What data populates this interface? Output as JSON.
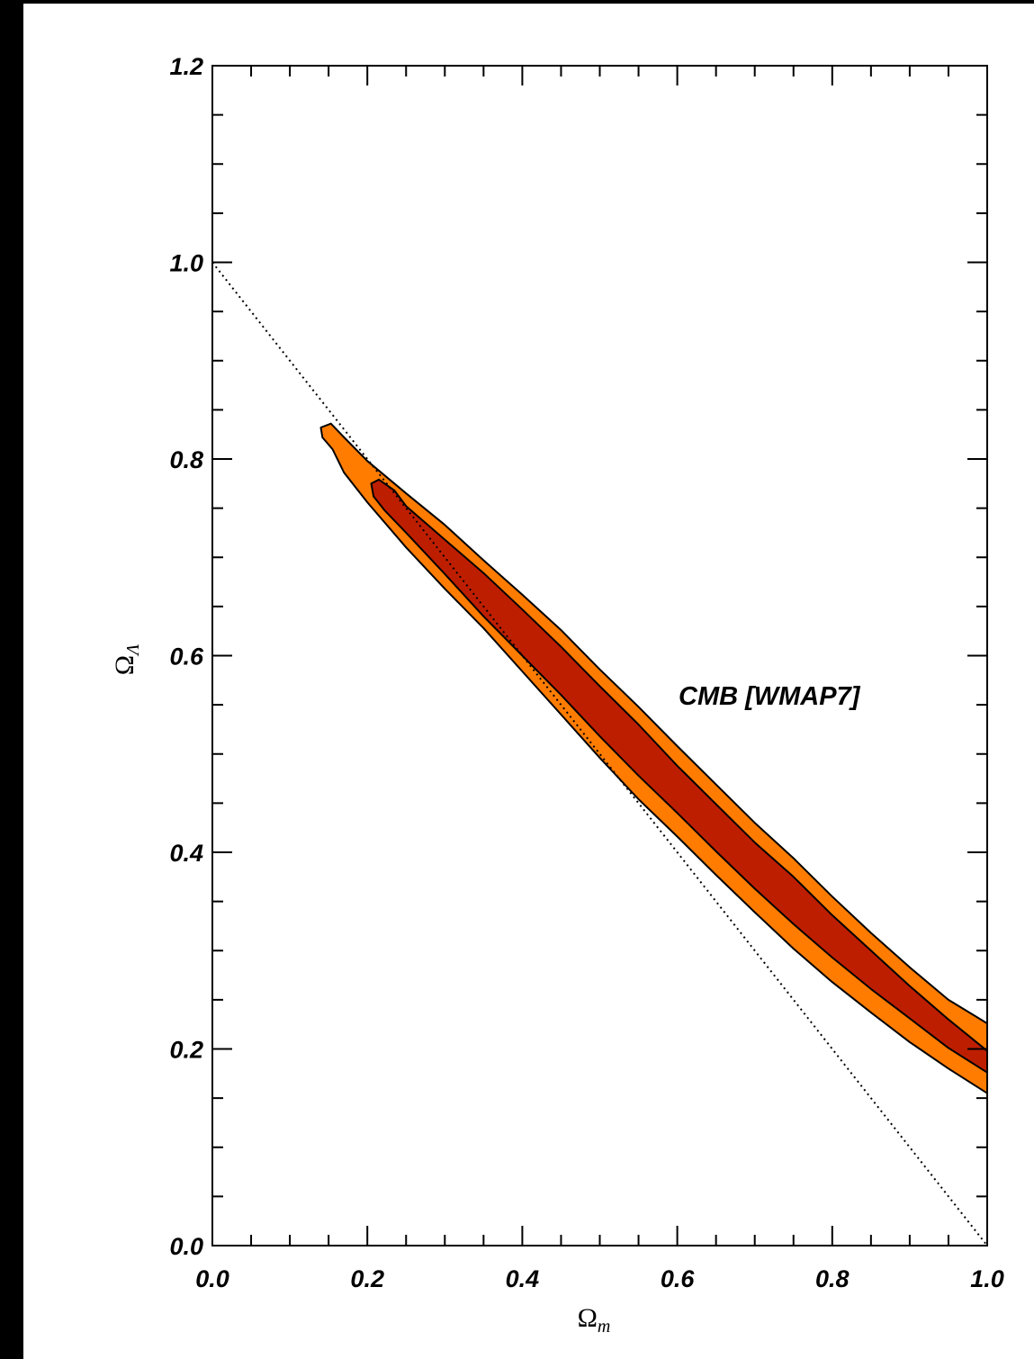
{
  "colors": {
    "background_outer": "#000000",
    "panel": "#ffffff",
    "outer_contour_fill": "#ff7c00",
    "inner_contour_fill": "#be1e00",
    "contour_stroke": "#000000",
    "line": "#000000"
  },
  "chart_data": {
    "type": "contour",
    "xlabel": {
      "symbol": "Ω",
      "subscript": "m"
    },
    "ylabel": {
      "symbol": "Ω",
      "subscript": "Λ"
    },
    "xlim": [
      0.0,
      1.0
    ],
    "ylim": [
      0.0,
      1.2
    ],
    "xticks": [
      "0.0",
      "0.2",
      "0.4",
      "0.6",
      "0.8",
      "1.0"
    ],
    "yticks": [
      "0.0",
      "0.2",
      "0.4",
      "0.6",
      "0.8",
      "1.0",
      "1.2"
    ],
    "annotation": "CMB [WMAP7]",
    "reference_line": {
      "style": "dotted",
      "points": [
        [
          0.0,
          1.0
        ],
        [
          1.0,
          0.0
        ]
      ]
    },
    "contours": [
      {
        "level": "outer",
        "fill": "#ff7c00",
        "points": [
          [
            0.14,
            0.832
          ],
          [
            0.153,
            0.836
          ],
          [
            0.17,
            0.822
          ],
          [
            0.2,
            0.798
          ],
          [
            0.25,
            0.765
          ],
          [
            0.3,
            0.733
          ],
          [
            0.35,
            0.697
          ],
          [
            0.4,
            0.662
          ],
          [
            0.45,
            0.626
          ],
          [
            0.5,
            0.586
          ],
          [
            0.55,
            0.548
          ],
          [
            0.6,
            0.508
          ],
          [
            0.65,
            0.469
          ],
          [
            0.7,
            0.43
          ],
          [
            0.75,
            0.394
          ],
          [
            0.8,
            0.355
          ],
          [
            0.85,
            0.318
          ],
          [
            0.9,
            0.283
          ],
          [
            0.95,
            0.25
          ],
          [
            0.975,
            0.238
          ],
          [
            1.0,
            0.226
          ],
          [
            1.0,
            0.155
          ],
          [
            0.95,
            0.18
          ],
          [
            0.9,
            0.207
          ],
          [
            0.85,
            0.237
          ],
          [
            0.8,
            0.268
          ],
          [
            0.75,
            0.302
          ],
          [
            0.7,
            0.339
          ],
          [
            0.65,
            0.377
          ],
          [
            0.6,
            0.416
          ],
          [
            0.55,
            0.454
          ],
          [
            0.5,
            0.496
          ],
          [
            0.45,
            0.54
          ],
          [
            0.4,
            0.584
          ],
          [
            0.35,
            0.628
          ],
          [
            0.3,
            0.668
          ],
          [
            0.25,
            0.71
          ],
          [
            0.2,
            0.756
          ],
          [
            0.17,
            0.786
          ],
          [
            0.155,
            0.81
          ],
          [
            0.142,
            0.822
          ]
        ]
      },
      {
        "level": "inner",
        "fill": "#be1e00",
        "points": [
          [
            0.205,
            0.775
          ],
          [
            0.215,
            0.779
          ],
          [
            0.235,
            0.768
          ],
          [
            0.25,
            0.752
          ],
          [
            0.3,
            0.718
          ],
          [
            0.35,
            0.684
          ],
          [
            0.4,
            0.647
          ],
          [
            0.45,
            0.609
          ],
          [
            0.5,
            0.569
          ],
          [
            0.55,
            0.53
          ],
          [
            0.6,
            0.488
          ],
          [
            0.65,
            0.449
          ],
          [
            0.7,
            0.41
          ],
          [
            0.75,
            0.375
          ],
          [
            0.8,
            0.336
          ],
          [
            0.85,
            0.3
          ],
          [
            0.9,
            0.264
          ],
          [
            0.95,
            0.23
          ],
          [
            0.975,
            0.214
          ],
          [
            1.0,
            0.198
          ],
          [
            1.0,
            0.176
          ],
          [
            0.95,
            0.201
          ],
          [
            0.9,
            0.231
          ],
          [
            0.85,
            0.261
          ],
          [
            0.8,
            0.293
          ],
          [
            0.75,
            0.327
          ],
          [
            0.7,
            0.363
          ],
          [
            0.65,
            0.401
          ],
          [
            0.6,
            0.44
          ],
          [
            0.55,
            0.478
          ],
          [
            0.5,
            0.518
          ],
          [
            0.45,
            0.56
          ],
          [
            0.4,
            0.6
          ],
          [
            0.35,
            0.64
          ],
          [
            0.3,
            0.683
          ],
          [
            0.25,
            0.725
          ],
          [
            0.222,
            0.748
          ],
          [
            0.208,
            0.762
          ]
        ]
      }
    ]
  }
}
